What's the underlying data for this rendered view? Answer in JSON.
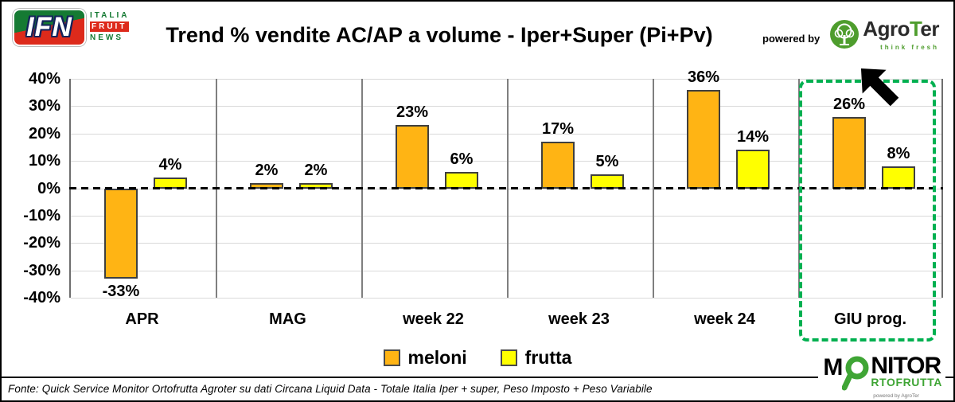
{
  "header": {
    "title": "Trend % vendite AC/AP a volume -  Iper+Super (Pi+Pv)",
    "powered_by": "powered by",
    "ifn_logo": {
      "badge": "IFN",
      "line1": "ITALIA",
      "line2": "FRUIT",
      "line3": "NEWS"
    },
    "agroter_logo": {
      "agro": "Agro",
      "t": "T",
      "er": "er",
      "tagline": "think fresh"
    }
  },
  "chart_data": {
    "type": "bar",
    "title": "Trend % vendite AC/AP a volume -  Iper+Super (Pi+Pv)",
    "categories": [
      "APR",
      "MAG",
      "week 22",
      "week 23",
      "week 24",
      "GIU prog."
    ],
    "series": [
      {
        "name": "meloni",
        "color": "#FFB414",
        "values": [
          -33,
          2,
          23,
          17,
          36,
          26
        ]
      },
      {
        "name": "frutta",
        "color": "#FFFF00",
        "values": [
          4,
          2,
          6,
          5,
          14,
          8
        ]
      }
    ],
    "ylim": [
      -40,
      40
    ],
    "ytick_step": 10,
    "ytick_labels": [
      "40%",
      "30%",
      "20%",
      "10%",
      "0%",
      "-10%",
      "-20%",
      "-30%",
      "-40%"
    ],
    "grid": true,
    "zero_line": "dashed",
    "legend_position": "bottom",
    "highlight": {
      "category": "GIU prog.",
      "style": "green-dashed-box",
      "color": "#00B050",
      "annotation": "black-arrow-pointing-down-left"
    }
  },
  "footer": {
    "fonte": "Fonte: Quick Service Monitor Ortofrutta Agroter su dati Circana Liquid Data - Totale Italia Iper + super, Peso Imposto + Peso Variabile",
    "monitor_logo": {
      "m": "M",
      "nitor": "NITOR",
      "rtofrutta": "RTOFRUTTA",
      "powered": "powered by AgroTer"
    }
  }
}
